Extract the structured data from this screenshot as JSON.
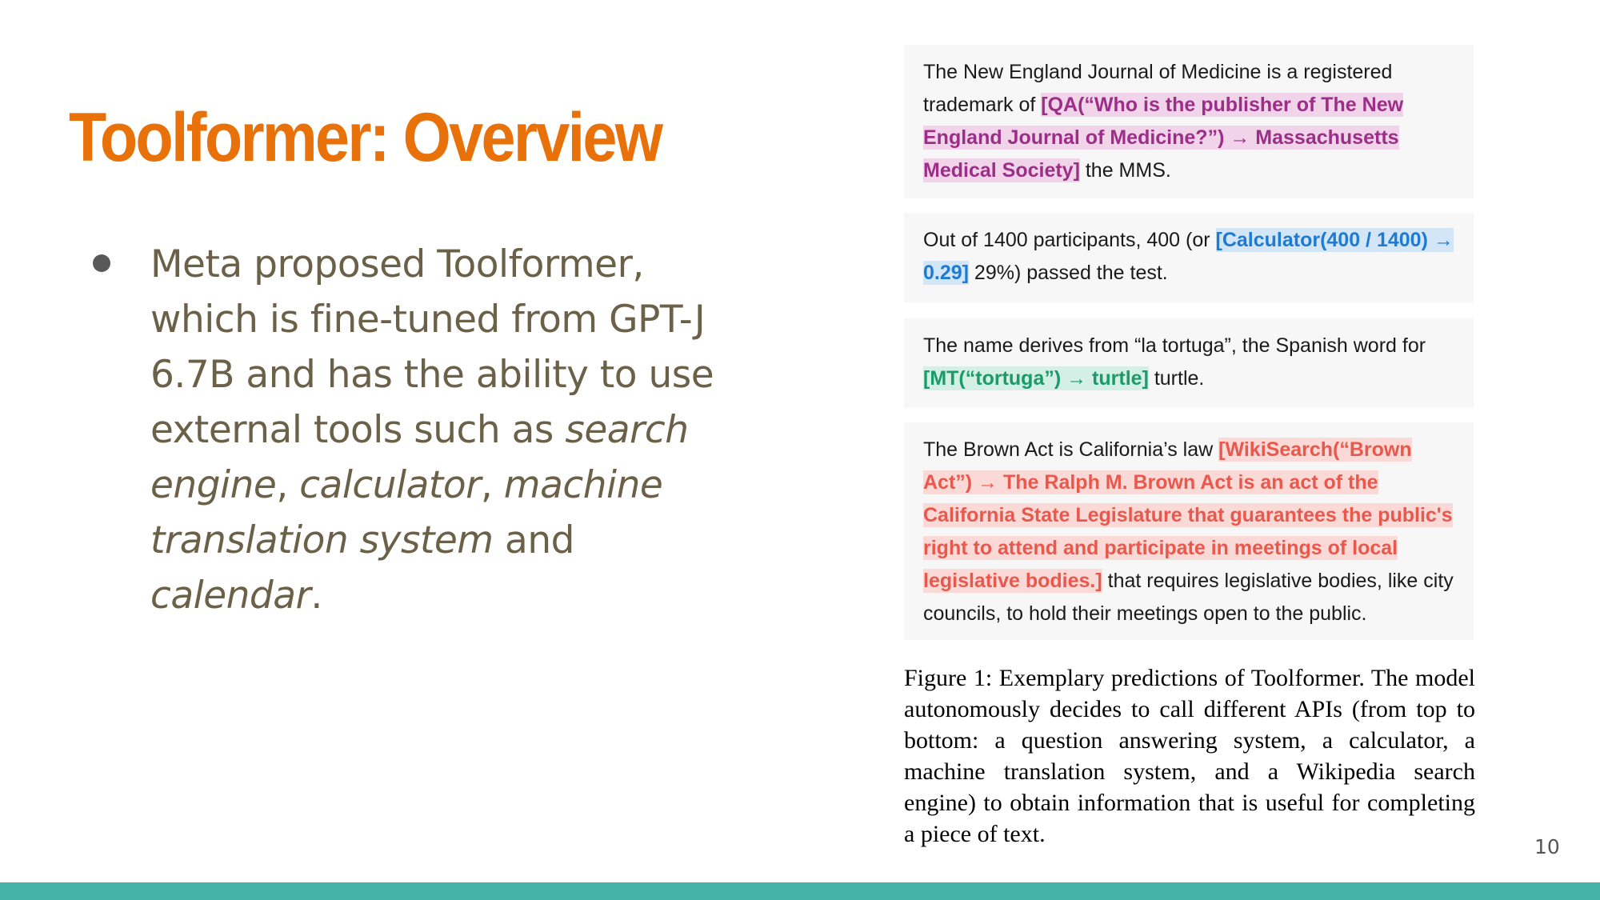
{
  "title": "Toolformer: Overview",
  "bullet": {
    "part1": "Meta proposed Toolformer, which is fine-tuned from GPT-J 6.7B and has the ability to use external tools such as ",
    "tool1": "search engine",
    "sep1": ", ",
    "tool2": "calculator",
    "sep2": ", ",
    "tool3": "machine translation system",
    "sep3": " and ",
    "tool4": "calendar",
    "end": "."
  },
  "examples": [
    {
      "before": "The New England Journal of Medicine is a registered trademark of ",
      "call": "[QA(“Who is the publisher of The New England Journal of Medicine?”) → Massachusetts Medical Society]",
      "after": " the MMS.",
      "color": "#9b2e86"
    },
    {
      "before": "Out of 1400 participants, 400 (or ",
      "call": "[Calculator(400 / 1400) → 0.29]",
      "after": " 29%) passed the test.",
      "color": "#1f7ad1"
    },
    {
      "before": "The name derives from “la tortuga”, the Spanish word for ",
      "call": "[MT(“tortuga”) → turtle]",
      "after": " turtle.",
      "color": "#1b9a6d"
    },
    {
      "before": "The Brown Act is California’s law ",
      "call": "[WikiSearch(“Brown Act”) → The Ralph M. Brown Act is an act of the California State Legislature that guarantees the public's right to attend and participate in meetings of local legislative bodies.]",
      "after": " that requires legislative bodies, like city councils, to hold their meetings open to the public.",
      "color": "#e8584c"
    }
  ],
  "caption": "Figure 1: Exemplary predictions of Toolformer. The model autonomously decides to call different APIs (from top to bottom: a question answering system, a calculator, a machine translation system, and a Wikipedia search engine) to obtain information that is useful for completing a piece of text.",
  "page_number": "10",
  "colors": {
    "title": "#e8710a",
    "bottom_bar": "#45b3a7",
    "body_text": "#6b6048"
  }
}
